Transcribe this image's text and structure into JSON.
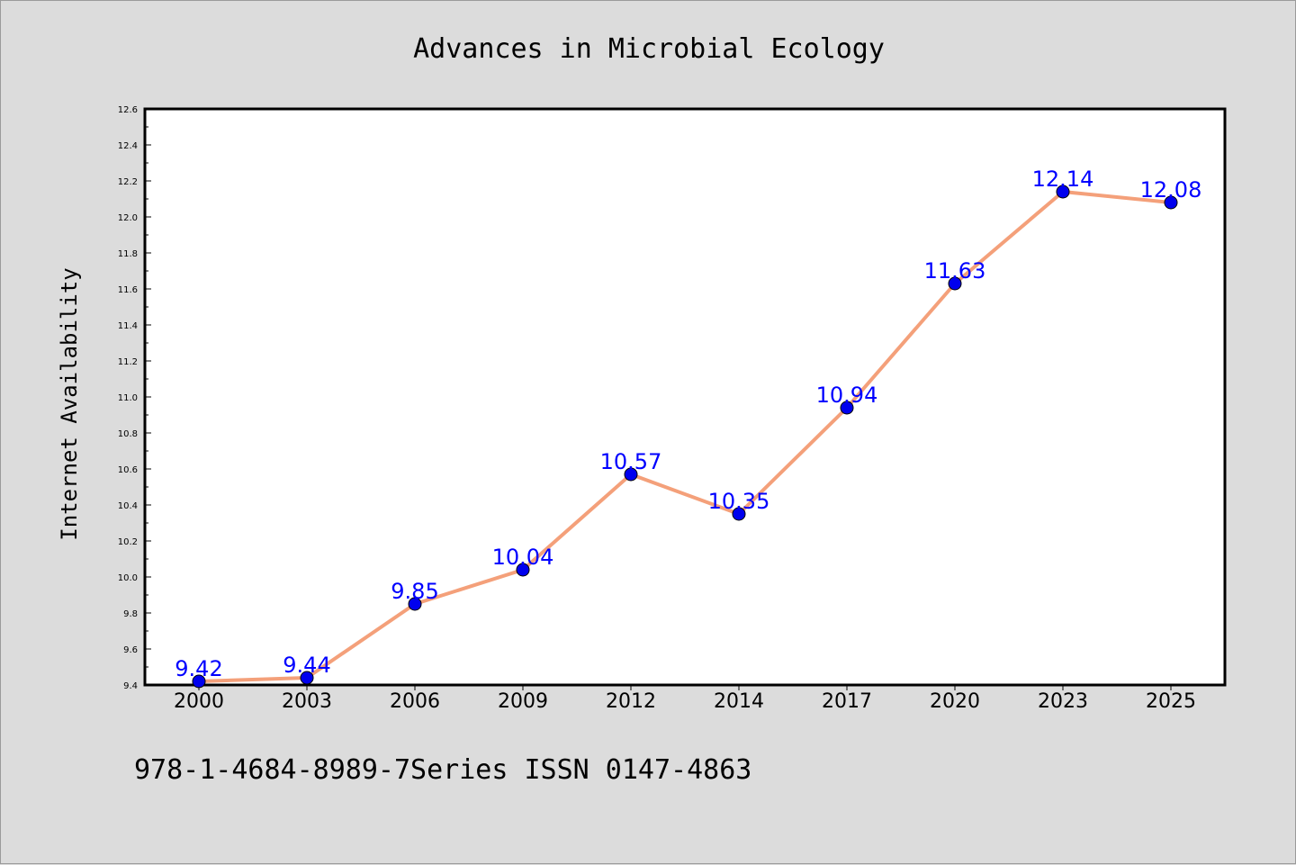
{
  "chart_data": {
    "type": "line",
    "title": "Advances in Microbial Ecology",
    "xlabel": "",
    "ylabel": "Internet Availability",
    "categories": [
      "2000",
      "2003",
      "2006",
      "2009",
      "2012",
      "2014",
      "2017",
      "2020",
      "2023",
      "2025"
    ],
    "series": [
      {
        "values": [
          9.42,
          9.44,
          9.85,
          10.04,
          10.57,
          10.35,
          10.94,
          11.63,
          12.14,
          12.08
        ]
      }
    ],
    "data_labels": [
      "9.42",
      "9.44",
      "9.85",
      "10.04",
      "10.57",
      "10.35",
      "10.94",
      "11.63",
      "12.14",
      "12.08"
    ],
    "ylim": [
      9.4,
      12.6
    ],
    "yticks": [
      "9.4",
      "9.6",
      "9.8",
      "10.0",
      "10.2",
      "10.4",
      "10.6",
      "10.8",
      "11.0",
      "11.2",
      "11.4",
      "11.6",
      "11.8",
      "12.0",
      "12.2",
      "12.4",
      "12.6"
    ],
    "grid": false,
    "legend": "none",
    "colors": {
      "line": "#f4a07a",
      "marker": "#0000ee",
      "data_label": "#0000ff"
    }
  },
  "footer": "978-1-4684-8989-7Series ISSN 0147-4863"
}
